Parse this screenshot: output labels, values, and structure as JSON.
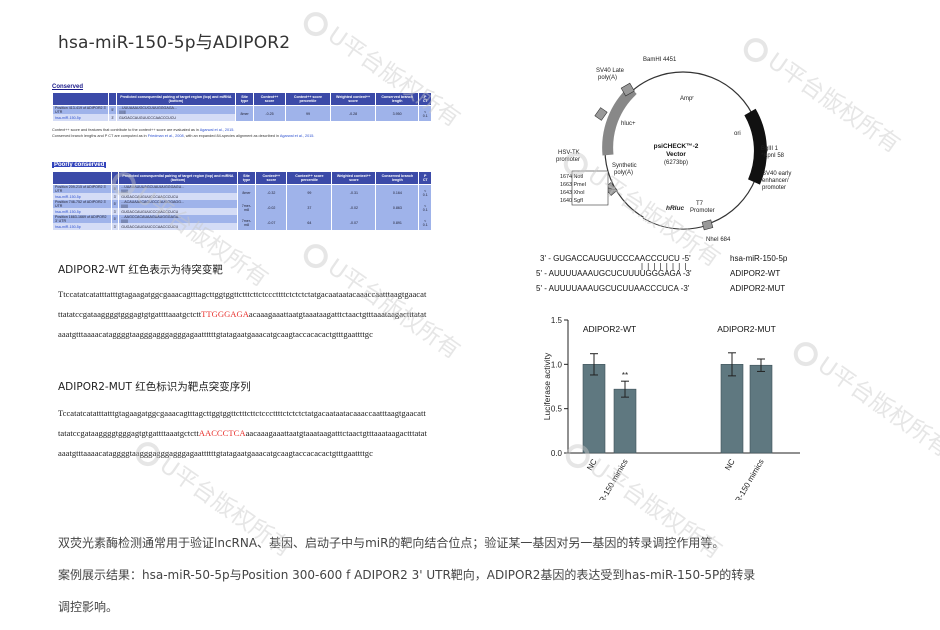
{
  "title": "hsa-miR-150-5p与ADIPOR2",
  "targetscan": {
    "conserved_label": "Conserved",
    "poorly_conserved_label": "Poorly conserved",
    "headers": [
      "",
      "",
      "Predicted consequential pairing of target region (top) and miRNA (bottom)",
      "Site type",
      "Context++ score",
      "Context++ score percentile",
      "Weighted context++ score",
      "Conserved branch length",
      "P CT"
    ],
    "conserved_rows": [
      {
        "pos": "Position 413-419 of ADIPOR2 3' UTR",
        "n": "5'",
        "pair": "...UUUAAAUGCUCUUUGGGAGA...",
        "bars": "|||||||",
        "type": "8mer",
        "ctx": "-0.25",
        "pct": "99",
        "w": "-0.28",
        "bl": "3.950",
        "pct2": "< 0.1",
        "mir": "hsa-miR-150-5p",
        "mn": "3'",
        "mseq": "GUGACCAUGUUCCCAACCCUCU"
      }
    ],
    "note_1": "Context++ score and features that contribute to the context++ score are evaluated as in",
    "note_1_link": "Agarwal et al., 2015.",
    "note_2": "Conserved branch lengths and P CT are computed as in",
    "note_2_link": "Friedman et al., 2008",
    "note_2b": ", with an expanded 84-species alignment as described in",
    "note_2c": "Agarwal et al., 2015.",
    "poor_rows": [
      {
        "pos": "Position 209-215 of ADIPOR2 3' UTR",
        "n": "5'",
        "pair": "...UAAUAUUUAGCUAUUUGGGAGU...",
        "bars": "|||||||",
        "type": "8mer",
        "ctx": "-0.32",
        "pct": "99",
        "w": "-0.31",
        "bl": "0.164",
        "pct2": "< 0.1",
        "mir": "hsa-miR-150-5p",
        "mn": "3'",
        "mseq": "GUGACCAUGUUCCCAACCCUCU"
      },
      {
        "pos": "Position 746-752 of ADIPOR2 3' UTR",
        "n": "5'",
        "pair": "...ACAUAAACAGUCCCAUGGGAGG...",
        "bars": "|||||||",
        "type": "7mer-m8",
        "ctx": "-0.02",
        "pct": "37",
        "w": "-0.02",
        "bl": "0.863",
        "pct2": "< 0.1",
        "mir": "hsa-miR-150-5p",
        "mn": "3'",
        "mseq": "GUGACCAUGUUCCCAACCCUCU"
      },
      {
        "pos": "Position 1663-1669 of ADIPOR2 3' UTR",
        "n": "5'",
        "pair": "...AAGCCACAUAAGUAUGGGAGA...",
        "bars": "|||||||",
        "type": "7mer-m8",
        "ctx": "-0.07",
        "pct": "64",
        "w": "-0.07",
        "bl": "0.891",
        "pct2": "< 0.1",
        "mir": "hsa-miR-150-5p",
        "mn": "3'",
        "mseq": "GUGACCAUGUUCCCAACCCUCU"
      }
    ]
  },
  "wt": {
    "title": "ADIPOR2-WT 红色表示为待突变靶",
    "seq_before": "Ttccatatcatatttatttgtagaagatggcgaaacagtttagcttggtggttctttcttctcccttttctctctctatgacaataatacaaaccaatttaagtgaacatttatatccgataaggggtgggagtgtgattttaaatgctctt",
    "seq_highlight": "TTGGGAGA",
    "seq_after": "acaaagaaattaatgtaaataagatttctaactgtttaaataagactttatataaatgtttaaaacataggggtaagggagggagggagaattttttgtatagaatgaaacatgcaagtaccacacactgtttgaattttgc"
  },
  "mut": {
    "title": "ADIPOR2-MUT 红色标识为靶点突变序列",
    "seq_before": "Tccatatcatatttatttgtagaagatggcgaaacagtttagcttggtggttctttcttctcccttttctctctctatgacaataatacaaaccaatttaagtgaacatttatatccgataaggggtgggagtgtgattttaaatgctctt",
    "seq_highlight": "AACCCTCA",
    "seq_after": "aacaaagaaattaatgtaaataagatttctaactgtttaaataagactttatataaatgtttaaaacataggggtaagggagggagggagaattttttgtatagaatgaaacatgcaagtaccacacactgtttgaattttgc"
  },
  "vector": {
    "name_line1": "psiCHECK™-2",
    "name_line2": "Vector",
    "size": "(6273bp)",
    "labels": {
      "bamhi": "BamHI 4451",
      "sv40_late": "SV40 Late",
      "polya": "poly(A)",
      "ampr": "Ampʳ",
      "hluc": "hluc+",
      "ori": "ori",
      "bglii": "BglII 1",
      "kpni": "*KpnI 58",
      "sv40_early": "SV40 early",
      "enhancer": "enhancer/",
      "promoter": "promoter",
      "t7": "T7",
      "t7promoter": "Promoter",
      "nhei": "NheI 684",
      "hrluc": "hRluc",
      "hsvtk": "HSV-TK",
      "hsvtk2": "promoter",
      "synthetic": "Synthetic",
      "synthetic2": "poly(A)",
      "mcs": [
        "1674  NotI",
        "1663  PmeI",
        "1643  XhoI",
        "1640  SgfI"
      ]
    }
  },
  "alignment": {
    "rows": [
      {
        "seq": "3' - GUGACCAUGUUCCCAACCCUCU -5'",
        "label": "hsa-miR-150-5p"
      },
      {
        "seq": "5' - AUUUUAAAUGCUCUUUUGGGAGA -3'",
        "label": "ADIPOR2-WT"
      },
      {
        "seq": "5' - AUUUUAAAUGCUCUUAACCCUCA -3'",
        "label": "ADIPOR2-MUT"
      }
    ]
  },
  "chart_data": {
    "type": "bar",
    "ylabel": "Luciferase activity",
    "ylim": [
      0,
      1.5
    ],
    "yticks": [
      "0.0",
      "0.5",
      "1.0",
      "1.5"
    ],
    "groups": [
      "ADIPOR2-WT",
      "ADIPOR2-MUT"
    ],
    "categories": [
      "NC",
      "miR-150 mimics",
      "NC",
      "miR-150 mimics"
    ],
    "values": [
      1.0,
      0.72,
      1.0,
      0.99
    ],
    "errors": [
      0.12,
      0.09,
      0.13,
      0.07
    ],
    "annotations": [
      "",
      "**",
      "",
      ""
    ],
    "bar_color": "#5f7880"
  },
  "paragraphs": {
    "p1": "双荧光素酶检测通常用于验证lncRNA、基因、启动子中与miR的靶向结合位点；验证某一基因对另一基因的转录调控作用等。",
    "p2": "案例展示结果：hsa-miR-50-5p与Position 300-600 f ADIPOR2 3' UTR靶向，ADIPOR2基因的表达受到has-miR-150-5P的转录",
    "p3": "调控影响。"
  },
  "watermark": "U平台版权所有"
}
